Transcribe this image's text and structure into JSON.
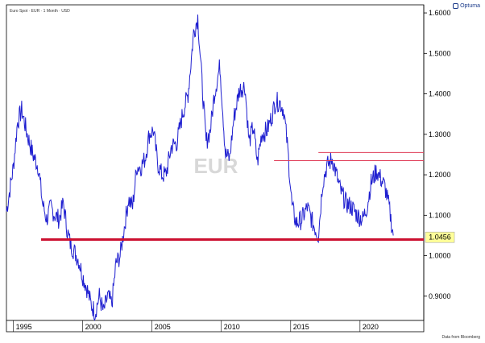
{
  "header": {
    "series_caption": "Euro Spot · EUR · 1 Month · USD",
    "brand": "Optuma",
    "watermark": "EUR",
    "source_note": "Data from Bloomberg"
  },
  "current_price_label": "1.0456",
  "colors": {
    "line": "#1f1fd0",
    "support": "#cc1030",
    "resistance": "#e0405a",
    "price_box_bg": "#ffff99",
    "watermark": "#d8d8d8"
  },
  "chart_data": {
    "type": "line",
    "title": "",
    "xlabel": "",
    "ylabel": "",
    "x_tick_labels": [
      "1995",
      "2000",
      "2005",
      "2010",
      "2015",
      "2020"
    ],
    "x_ticks": [
      1995,
      2000,
      2005,
      2010,
      2015,
      2020
    ],
    "y_tick_labels": [
      "0.9000",
      "1.0000",
      "1.1000",
      "1.2000",
      "1.3000",
      "1.4000",
      "1.5000",
      "1.6000"
    ],
    "y_ticks": [
      0.9,
      1.0,
      1.1,
      1.2,
      1.3,
      1.4,
      1.5,
      1.6
    ],
    "xlim": [
      1994.5,
      2024.6
    ],
    "ylim": [
      0.84,
      1.62
    ],
    "y_axis_side": "right",
    "series": [
      {
        "x": [
          1994.5,
          1995.0,
          1995.3,
          1995.6,
          1996.0,
          1996.4,
          1996.8,
          1997.1,
          1997.4,
          1997.7,
          1998.0,
          1998.3,
          1998.6,
          1998.9,
          1999.1,
          1999.4,
          1999.7,
          2000.0,
          2000.3,
          2000.6,
          2000.9,
          2001.2,
          2001.5,
          2001.8,
          2002.1,
          2002.4,
          2002.7,
          2003.0,
          2003.3,
          2003.6,
          2003.9,
          2004.2,
          2004.5,
          2004.8,
          2005.1,
          2005.4,
          2005.7,
          2006.0,
          2006.4,
          2006.8,
          2007.2,
          2007.6,
          2008.0,
          2008.3,
          2008.6,
          2008.9,
          2009.2,
          2009.5,
          2009.9,
          2010.3,
          2010.6,
          2010.9,
          2011.3,
          2011.7,
          2012.0,
          2012.3,
          2012.6,
          2012.9,
          2013.3,
          2013.6,
          2013.9,
          2014.2,
          2014.5,
          2014.8,
          2015.1,
          2015.4,
          2015.8,
          2016.2,
          2016.6,
          2017.0,
          2017.3,
          2017.6,
          2018.0,
          2018.3,
          2018.6,
          2019.0,
          2019.4,
          2019.8,
          2020.2,
          2020.5,
          2020.8,
          2021.2,
          2021.5,
          2021.8,
          2022.1,
          2022.4
        ],
        "values": [
          1.11,
          1.22,
          1.33,
          1.36,
          1.3,
          1.25,
          1.22,
          1.13,
          1.09,
          1.12,
          1.1,
          1.09,
          1.13,
          1.06,
          1.03,
          1.01,
          0.99,
          0.95,
          0.92,
          0.88,
          0.86,
          0.9,
          0.86,
          0.9,
          0.88,
          0.98,
          1.0,
          1.07,
          1.14,
          1.12,
          1.22,
          1.22,
          1.24,
          1.3,
          1.31,
          1.23,
          1.2,
          1.2,
          1.27,
          1.28,
          1.35,
          1.4,
          1.55,
          1.59,
          1.43,
          1.28,
          1.31,
          1.4,
          1.47,
          1.25,
          1.24,
          1.34,
          1.41,
          1.42,
          1.28,
          1.32,
          1.23,
          1.3,
          1.31,
          1.34,
          1.38,
          1.38,
          1.36,
          1.26,
          1.12,
          1.08,
          1.09,
          1.12,
          1.08,
          1.05,
          1.18,
          1.22,
          1.24,
          1.2,
          1.16,
          1.13,
          1.12,
          1.1,
          1.09,
          1.12,
          1.18,
          1.21,
          1.19,
          1.17,
          1.12,
          1.05
        ]
      }
    ],
    "horizontal_lines": [
      {
        "y": 1.04,
        "x_start": 1997.0,
        "x_end": 2024.6,
        "role": "support",
        "width": 3
      },
      {
        "y": 1.235,
        "x_start": 2013.8,
        "x_end": 2024.6,
        "role": "resistance",
        "width": 1
      },
      {
        "y": 1.255,
        "x_start": 2017.0,
        "x_end": 2024.6,
        "role": "resistance",
        "width": 1
      }
    ],
    "grid": false,
    "legend": "none"
  }
}
